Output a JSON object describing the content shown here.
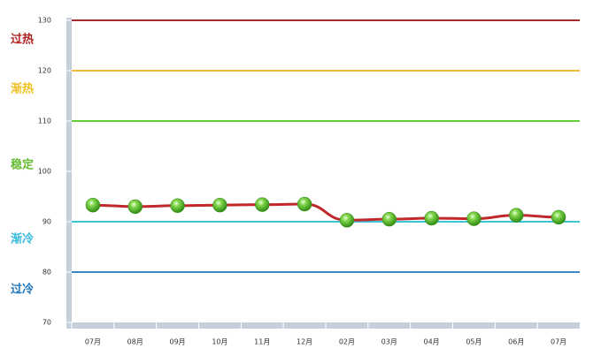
{
  "chart_data": {
    "type": "line",
    "categories": [
      "07月",
      "08月",
      "09月",
      "10月",
      "11月",
      "12月",
      "02月",
      "03月",
      "04月",
      "05月",
      "06月",
      "07月"
    ],
    "values": [
      93.3,
      93.0,
      93.2,
      93.3,
      93.4,
      93.5,
      90.3,
      90.5,
      90.7,
      90.6,
      91.3,
      90.9
    ],
    "color": "#c0282b",
    "ylim": [
      70,
      130
    ],
    "yticks": [
      70,
      80,
      90,
      100,
      110,
      120,
      130
    ],
    "reference_lines": [
      {
        "value": 130,
        "color": "#a52a2a"
      },
      {
        "value": 120,
        "color": "#f5b942"
      },
      {
        "value": 110,
        "color": "#66cc33"
      },
      {
        "value": 90,
        "color": "#3cc6d8"
      },
      {
        "value": 80,
        "color": "#3a86c8"
      }
    ],
    "zones": [
      {
        "label": "过热",
        "color": "#b22222"
      },
      {
        "label": "渐热",
        "color": "#f0c020"
      },
      {
        "label": "稳定",
        "color": "#66bb33"
      },
      {
        "label": "渐冷",
        "color": "#33bbdd"
      },
      {
        "label": "过冷",
        "color": "#2277bb"
      }
    ]
  }
}
